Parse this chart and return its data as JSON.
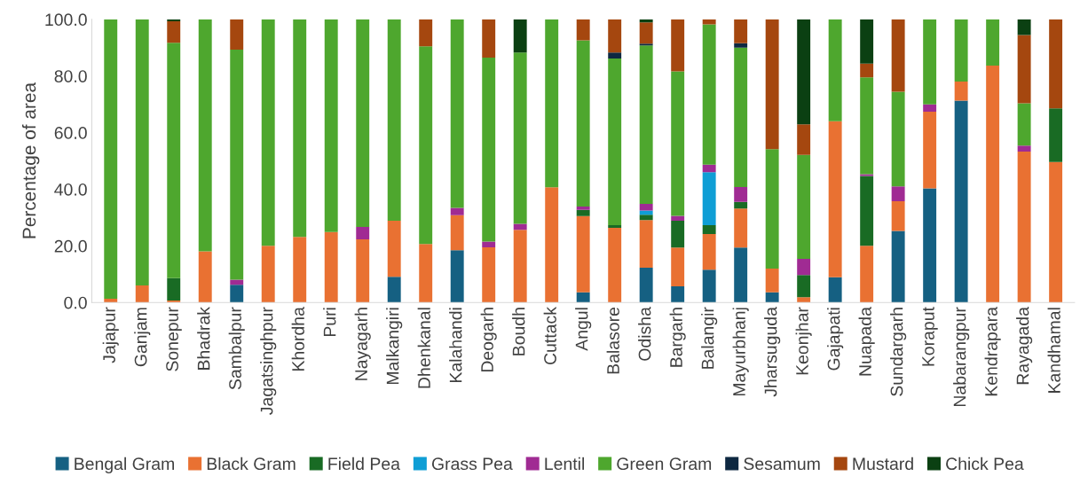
{
  "chart_data": {
    "type": "bar",
    "stacked": true,
    "ylabel": "Percentage of area",
    "categories": [
      "Jajapur",
      "Ganjam",
      "Sonepur",
      "Bhadrak",
      "Sambalpur",
      "Jagatsinghpur",
      "Khordha",
      "Puri",
      "Nayagarh",
      "Malkangiri",
      "Dhenkanal",
      "Kalahandi",
      "Deogarh",
      "Boudh",
      "Cuttack",
      "Angul",
      "Balasore",
      "Odisha",
      "Bargarh",
      "Balangir",
      "Mayurbhanj",
      "Jharsuguda",
      "Keonjhar",
      "Gajapati",
      "Nuapada",
      "Sundargarh",
      "Koraput",
      "Nabarangpur",
      "Kendrapara",
      "Rayagada",
      "Kandhamal"
    ],
    "series": [
      {
        "name": "Bengal Gram",
        "color": "#156082",
        "values": [
          0,
          0,
          0,
          0,
          6.3,
          0,
          0,
          0,
          0,
          9.1,
          0,
          18.5,
          0,
          0,
          0,
          3.6,
          0,
          12.3,
          5.7,
          11.6,
          19.4,
          3.6,
          0,
          8.9,
          0,
          25.3,
          40.3,
          71.3,
          0,
          0,
          0
        ]
      },
      {
        "name": "Black Gram",
        "color": "#e97132",
        "values": [
          1.3,
          6.0,
          0.7,
          18.1,
          0,
          20.0,
          23.2,
          24.9,
          22.3,
          19.8,
          20.7,
          12.3,
          19.5,
          25.7,
          40.7,
          26.9,
          26.4,
          16.8,
          13.7,
          12.6,
          13.8,
          8.4,
          1.9,
          55.1,
          20.0,
          10.5,
          27.1,
          6.7,
          83.7,
          53.3,
          49.6
        ]
      },
      {
        "name": "Field Pea",
        "color": "#196b24",
        "values": [
          0,
          0,
          7.9,
          0,
          0,
          0,
          0,
          0,
          0,
          0,
          0,
          0,
          0,
          0,
          0,
          2.2,
          0.9,
          1.9,
          9.5,
          3.1,
          2.3,
          0,
          7.8,
          0,
          24.7,
          0,
          0,
          0,
          0,
          0,
          19.0
        ]
      },
      {
        "name": "Grass Pea",
        "color": "#0f9ed5",
        "values": [
          0,
          0,
          0,
          0,
          0,
          0,
          0,
          0,
          0,
          0,
          0,
          0,
          0,
          0,
          0,
          0,
          0,
          1.5,
          0,
          18.7,
          0,
          0,
          0,
          0,
          0,
          0,
          0,
          0,
          0,
          0,
          0
        ]
      },
      {
        "name": "Lentil",
        "color": "#a02b93",
        "values": [
          0,
          0,
          0,
          0,
          1.8,
          0,
          0,
          0,
          4.4,
          0,
          0,
          2.6,
          2.0,
          2.1,
          0,
          1.2,
          0,
          2.3,
          1.7,
          2.7,
          5.3,
          0,
          5.7,
          0,
          0.6,
          5.2,
          2.6,
          0,
          0,
          2.1,
          0
        ]
      },
      {
        "name": "Green Gram",
        "color": "#4ea72e",
        "values": [
          98.7,
          94.0,
          83.1,
          81.9,
          81.2,
          80.0,
          76.8,
          75.1,
          73.3,
          71.1,
          69.8,
          66.6,
          65.0,
          60.5,
          59.3,
          58.7,
          58.9,
          56.0,
          51.0,
          49.5,
          49.2,
          42.2,
          36.7,
          36.0,
          34.2,
          33.4,
          30.0,
          22.0,
          16.3,
          15.0,
          0
        ]
      },
      {
        "name": "Sesamum",
        "color": "#0e2841",
        "values": [
          0,
          0,
          0,
          0,
          0,
          0,
          0,
          0,
          0,
          0,
          0,
          0,
          0,
          0,
          0,
          0,
          2.1,
          0.6,
          0,
          0,
          1.6,
          0,
          0,
          0,
          0,
          0,
          0,
          0,
          0,
          0,
          0
        ]
      },
      {
        "name": "Mustard",
        "color": "#a5470f",
        "values": [
          0,
          0,
          7.6,
          0,
          10.7,
          0,
          0,
          0,
          0,
          0,
          9.5,
          0,
          13.5,
          0,
          0,
          7.4,
          11.7,
          7.5,
          18.4,
          1.8,
          8.4,
          45.8,
          10.8,
          0,
          4.9,
          25.6,
          0,
          0,
          0,
          24.1,
          31.4
        ]
      },
      {
        "name": "Chick Pea",
        "color": "#0b4012",
        "values": [
          0,
          0,
          0.7,
          0,
          0,
          0,
          0,
          0,
          0,
          0,
          0,
          0,
          0,
          11.7,
          0,
          0,
          0,
          1.1,
          0,
          0,
          0,
          0,
          37.1,
          0,
          15.6,
          0,
          0,
          0,
          0,
          5.5,
          0
        ]
      }
    ],
    "ylim": [
      0,
      100
    ],
    "yticks": [
      {
        "value": 0,
        "label": "0.0"
      },
      {
        "value": 20,
        "label": "20.0"
      },
      {
        "value": 40,
        "label": "40.0"
      },
      {
        "value": 60,
        "label": "60.0"
      },
      {
        "value": 80,
        "label": "80.0"
      },
      {
        "value": 100,
        "label": "100.0"
      }
    ],
    "grid": false,
    "legend": "bottom"
  }
}
